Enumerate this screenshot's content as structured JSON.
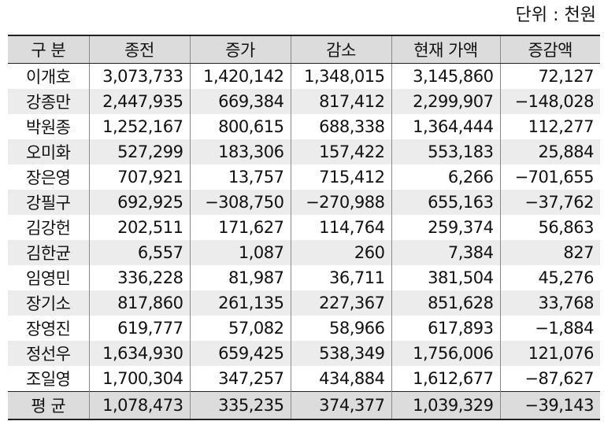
{
  "unit_label": "단위 : 천원",
  "headers": [
    "구 분",
    "종전",
    "증가",
    "감소",
    "현재 가액",
    "증감액"
  ],
  "rows": [
    [
      "이개호",
      "3,073,733",
      "1,420,142",
      "1,348,015",
      "3,145,860",
      "72,127"
    ],
    [
      "강종만",
      "2,447,935",
      "669,384",
      "817,412",
      "2,299,907",
      "−148,028"
    ],
    [
      "박원종",
      "1,252,167",
      "800,615",
      "688,338",
      "1,364,444",
      "112,277"
    ],
    [
      "오미화",
      "527,299",
      "183,306",
      "157,422",
      "553,183",
      "25,884"
    ],
    [
      "장은영",
      "707,921",
      "13,757",
      "715,412",
      "6,266",
      "−701,655"
    ],
    [
      "강필구",
      "692,925",
      "−308,750",
      "−270,988",
      "655,163",
      "−37,762"
    ],
    [
      "김강헌",
      "202,511",
      "171,627",
      "114,764",
      "259,374",
      "56,863"
    ],
    [
      "김한균",
      "6,557",
      "1,087",
      "260",
      "7,384",
      "827"
    ],
    [
      "임영민",
      "336,228",
      "81,987",
      "36,711",
      "381,504",
      "45,276"
    ],
    [
      "장기소",
      "817,860",
      "261,135",
      "227,367",
      "851,628",
      "33,768"
    ],
    [
      "장영진",
      "619,777",
      "57,082",
      "58,966",
      "617,893",
      "−1,884"
    ],
    [
      "정선우",
      "1,634,930",
      "659,425",
      "538,349",
      "1,756,006",
      "121,076"
    ],
    [
      "조일영",
      "1,700,304",
      "347,257",
      "434,884",
      "1,612,677",
      "−87,627"
    ]
  ],
  "average": [
    "평 균",
    "1,078,473",
    "335,235",
    "374,377",
    "1,039,329",
    "−39,143"
  ]
}
